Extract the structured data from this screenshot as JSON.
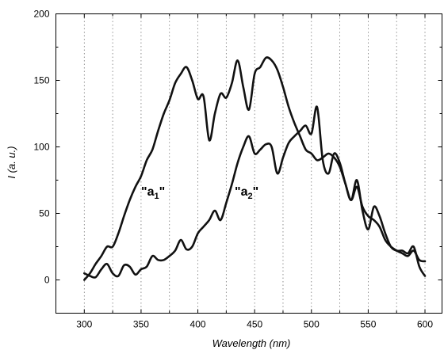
{
  "chart_data": {
    "type": "line",
    "xlabel": "Wavelength (nm)",
    "ylabel_main": "I",
    "ylabel_unit": " (a. u.)",
    "xlim": [
      275,
      615
    ],
    "ylim": [
      -25,
      200
    ],
    "grid": {
      "x": true,
      "y": false,
      "style": "dotted"
    },
    "x_ticks": [
      "300",
      "350",
      "400",
      "450",
      "500",
      "550",
      "600"
    ],
    "y_ticks": [
      "0",
      "50",
      "100",
      "150",
      "200"
    ],
    "series": [
      {
        "label_main": "\"a",
        "label_sub": "1",
        "label_end": "\"",
        "x": [
          300,
          305,
          310,
          315,
          320,
          325,
          330,
          335,
          340,
          345,
          350,
          355,
          360,
          365,
          370,
          375,
          380,
          385,
          390,
          395,
          400,
          405,
          410,
          415,
          420,
          425,
          430,
          435,
          440,
          445,
          450,
          455,
          460,
          465,
          470,
          475,
          480,
          485,
          490,
          495,
          500,
          505,
          510,
          515,
          520,
          525,
          530,
          535,
          540,
          545,
          550,
          555,
          560,
          565,
          570,
          575,
          580,
          585,
          590,
          595,
          600
        ],
        "y": [
          0,
          5,
          12,
          18,
          25,
          25,
          35,
          48,
          60,
          70,
          78,
          90,
          98,
          112,
          125,
          135,
          148,
          155,
          160,
          150,
          136,
          138,
          105,
          125,
          140,
          137,
          148,
          165,
          145,
          128,
          155,
          160,
          167,
          165,
          158,
          145,
          130,
          118,
          108,
          98,
          95,
          90,
          92,
          95,
          92,
          85,
          72,
          60,
          70,
          55,
          48,
          45,
          40,
          30,
          25,
          22,
          20,
          18,
          22,
          15,
          14
        ]
      },
      {
        "label_main": "\"a",
        "label_sub": "2",
        "label_end": "\"",
        "x": [
          300,
          305,
          310,
          315,
          320,
          325,
          330,
          335,
          340,
          345,
          350,
          355,
          360,
          365,
          370,
          375,
          380,
          385,
          390,
          395,
          400,
          405,
          410,
          415,
          420,
          425,
          430,
          435,
          440,
          445,
          450,
          455,
          460,
          465,
          470,
          475,
          480,
          485,
          490,
          495,
          500,
          505,
          510,
          515,
          520,
          525,
          530,
          535,
          540,
          545,
          550,
          555,
          560,
          565,
          570,
          575,
          580,
          585,
          590,
          595,
          600
        ],
        "y": [
          5,
          3,
          2,
          8,
          12,
          5,
          3,
          11,
          10,
          4,
          8,
          10,
          18,
          15,
          15,
          18,
          22,
          30,
          23,
          25,
          35,
          40,
          45,
          52,
          45,
          58,
          72,
          88,
          100,
          108,
          95,
          98,
          102,
          100,
          80,
          92,
          103,
          108,
          112,
          116,
          110,
          130,
          90,
          80,
          95,
          88,
          72,
          60,
          75,
          52,
          38,
          55,
          48,
          35,
          25,
          22,
          22,
          20,
          25,
          10,
          3
        ]
      }
    ]
  }
}
